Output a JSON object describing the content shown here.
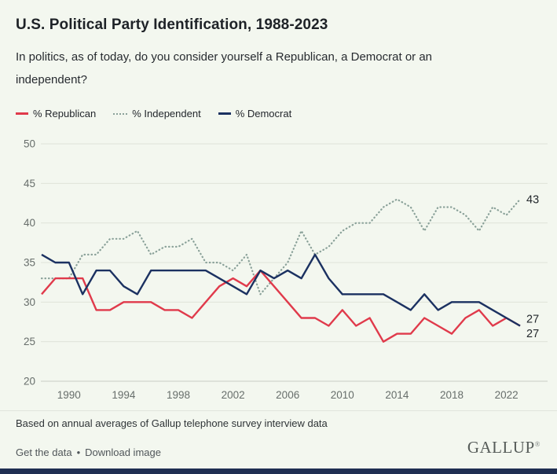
{
  "header": {
    "title": "U.S. Political Party Identification, 1988-2023",
    "subtitle": "In politics, as of today, do you consider yourself a Republican, a Democrat or an independent?"
  },
  "legend": {
    "items": [
      {
        "label": "% Republican",
        "style": "solid",
        "color": "#e03a4b"
      },
      {
        "label": "% Independent",
        "style": "dotted",
        "color": "#8aa199"
      },
      {
        "label": "% Democrat",
        "style": "solid",
        "color": "#1b3161"
      }
    ]
  },
  "chart_data": {
    "type": "line",
    "title": "U.S. Political Party Identification, 1988-2023",
    "x": [
      1988,
      1989,
      1990,
      1991,
      1992,
      1993,
      1994,
      1995,
      1996,
      1997,
      1998,
      1999,
      2000,
      2001,
      2002,
      2003,
      2004,
      2005,
      2006,
      2007,
      2008,
      2009,
      2010,
      2011,
      2012,
      2013,
      2014,
      2015,
      2016,
      2017,
      2018,
      2019,
      2020,
      2021,
      2022,
      2023
    ],
    "series": [
      {
        "name": "% Independent",
        "color": "#8aa199",
        "dash": "dotted",
        "values": [
          33,
          33,
          33,
          36,
          36,
          38,
          38,
          39,
          36,
          37,
          37,
          38,
          35,
          35,
          34,
          36,
          31,
          33,
          35,
          39,
          36,
          37,
          39,
          40,
          40,
          42,
          43,
          42,
          39,
          42,
          42,
          41,
          39,
          42,
          41,
          43
        ]
      },
      {
        "name": "% Republican",
        "color": "#e03a4b",
        "dash": "solid",
        "values": [
          31,
          33,
          33,
          33,
          29,
          29,
          30,
          30,
          30,
          29,
          29,
          28,
          30,
          32,
          33,
          32,
          34,
          32,
          30,
          28,
          28,
          27,
          29,
          27,
          28,
          25,
          26,
          26,
          28,
          27,
          26,
          28,
          29,
          27,
          28,
          27
        ]
      },
      {
        "name": "% Democrat",
        "color": "#1b3161",
        "dash": "solid",
        "values": [
          36,
          35,
          35,
          31,
          34,
          34,
          32,
          31,
          34,
          34,
          34,
          34,
          34,
          33,
          32,
          31,
          34,
          33,
          34,
          33,
          36,
          33,
          31,
          31,
          31,
          31,
          30,
          29,
          31,
          29,
          30,
          30,
          30,
          29,
          28,
          27
        ]
      }
    ],
    "ylim": [
      20,
      50
    ],
    "yticks": [
      50,
      45,
      40,
      35,
      30,
      25,
      20
    ],
    "xticks": [
      1990,
      1994,
      1998,
      2002,
      2006,
      2010,
      2014,
      2018,
      2022
    ],
    "grid": "horizontal",
    "legend_position": "top",
    "end_labels": {
      "independent": "43",
      "republican": "27",
      "democrat": "27"
    }
  },
  "footer": {
    "note": "Based on annual averages of Gallup telephone survey interview data",
    "links": {
      "get_data": "Get the data",
      "separator": "•",
      "download": "Download image"
    },
    "brand": "GALLUP",
    "reg_mark": "®"
  }
}
